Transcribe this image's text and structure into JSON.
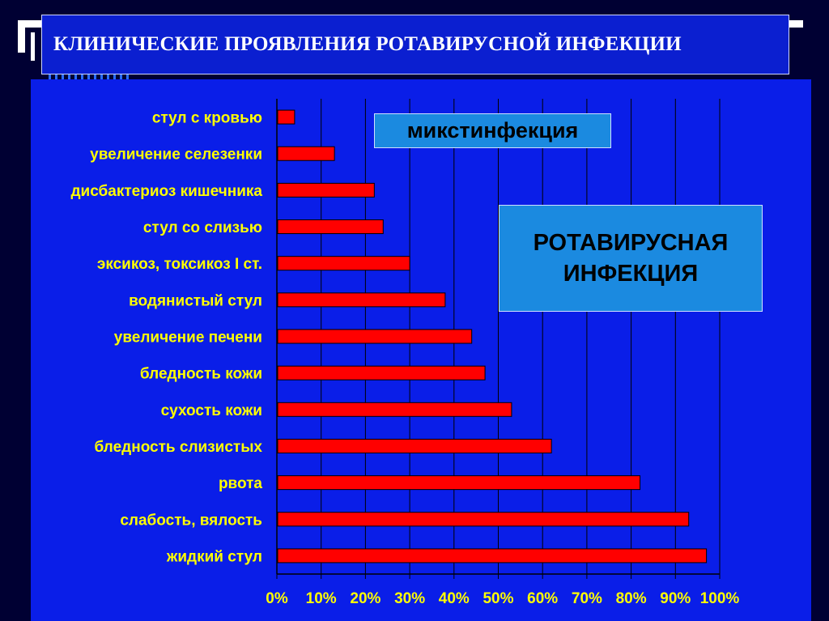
{
  "slide": {
    "title": "КЛИНИЧЕСКИЕ ПРОЯВЛЕНИЯ РОТАВИРУСНОЙ ИНФЕКЦИИ",
    "callouts": {
      "mixt": "микстинфекция",
      "rota": "РОТАВИРУСНАЯ\nИНФЕКЦИЯ"
    },
    "colors": {
      "background": "#000033",
      "panel": "#0a1ee8",
      "bar": "#ff0000",
      "label": "#ffff00",
      "callout": "#1b8ae0"
    }
  },
  "chart_data": {
    "type": "bar",
    "orientation": "horizontal",
    "categories": [
      "стул с кровью",
      "увеличение селезенки",
      "дисбактериоз кишечника",
      "стул со слизью",
      "эксикоз, токсикоз I ст.",
      "водянистый стул",
      "увеличение печени",
      "бледность кожи",
      "сухость кожи",
      "бледность слизистых",
      "рвота",
      "слабость, вялость",
      "жидкий стул"
    ],
    "values": [
      4,
      13,
      22,
      24,
      30,
      38,
      44,
      47,
      53,
      62,
      82,
      93,
      97
    ],
    "xlim": [
      0,
      100
    ],
    "x_ticks": [
      "0%",
      "10%",
      "20%",
      "30%",
      "40%",
      "50%",
      "60%",
      "70%",
      "80%",
      "90%",
      "100%"
    ],
    "grid": true
  }
}
